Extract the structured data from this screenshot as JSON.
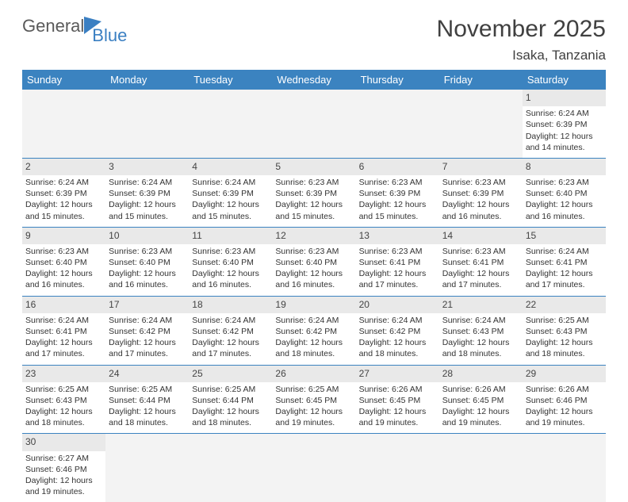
{
  "brand": {
    "text1": "General",
    "text2": "Blue"
  },
  "title": "November 2025",
  "location": "Isaka, Tanzania",
  "daynames": [
    "Sunday",
    "Monday",
    "Tuesday",
    "Wednesday",
    "Thursday",
    "Friday",
    "Saturday"
  ],
  "colors": {
    "header_bg": "#3b83c0",
    "header_text": "#ffffff",
    "rule": "#3b83c0"
  },
  "startOffset": 6,
  "days": [
    {
      "n": 1,
      "sr": "6:24 AM",
      "ss": "6:39 PM",
      "dl": "12 hours and 14 minutes."
    },
    {
      "n": 2,
      "sr": "6:24 AM",
      "ss": "6:39 PM",
      "dl": "12 hours and 15 minutes."
    },
    {
      "n": 3,
      "sr": "6:24 AM",
      "ss": "6:39 PM",
      "dl": "12 hours and 15 minutes."
    },
    {
      "n": 4,
      "sr": "6:24 AM",
      "ss": "6:39 PM",
      "dl": "12 hours and 15 minutes."
    },
    {
      "n": 5,
      "sr": "6:23 AM",
      "ss": "6:39 PM",
      "dl": "12 hours and 15 minutes."
    },
    {
      "n": 6,
      "sr": "6:23 AM",
      "ss": "6:39 PM",
      "dl": "12 hours and 15 minutes."
    },
    {
      "n": 7,
      "sr": "6:23 AM",
      "ss": "6:39 PM",
      "dl": "12 hours and 16 minutes."
    },
    {
      "n": 8,
      "sr": "6:23 AM",
      "ss": "6:40 PM",
      "dl": "12 hours and 16 minutes."
    },
    {
      "n": 9,
      "sr": "6:23 AM",
      "ss": "6:40 PM",
      "dl": "12 hours and 16 minutes."
    },
    {
      "n": 10,
      "sr": "6:23 AM",
      "ss": "6:40 PM",
      "dl": "12 hours and 16 minutes."
    },
    {
      "n": 11,
      "sr": "6:23 AM",
      "ss": "6:40 PM",
      "dl": "12 hours and 16 minutes."
    },
    {
      "n": 12,
      "sr": "6:23 AM",
      "ss": "6:40 PM",
      "dl": "12 hours and 16 minutes."
    },
    {
      "n": 13,
      "sr": "6:23 AM",
      "ss": "6:41 PM",
      "dl": "12 hours and 17 minutes."
    },
    {
      "n": 14,
      "sr": "6:23 AM",
      "ss": "6:41 PM",
      "dl": "12 hours and 17 minutes."
    },
    {
      "n": 15,
      "sr": "6:24 AM",
      "ss": "6:41 PM",
      "dl": "12 hours and 17 minutes."
    },
    {
      "n": 16,
      "sr": "6:24 AM",
      "ss": "6:41 PM",
      "dl": "12 hours and 17 minutes."
    },
    {
      "n": 17,
      "sr": "6:24 AM",
      "ss": "6:42 PM",
      "dl": "12 hours and 17 minutes."
    },
    {
      "n": 18,
      "sr": "6:24 AM",
      "ss": "6:42 PM",
      "dl": "12 hours and 17 minutes."
    },
    {
      "n": 19,
      "sr": "6:24 AM",
      "ss": "6:42 PM",
      "dl": "12 hours and 18 minutes."
    },
    {
      "n": 20,
      "sr": "6:24 AM",
      "ss": "6:42 PM",
      "dl": "12 hours and 18 minutes."
    },
    {
      "n": 21,
      "sr": "6:24 AM",
      "ss": "6:43 PM",
      "dl": "12 hours and 18 minutes."
    },
    {
      "n": 22,
      "sr": "6:25 AM",
      "ss": "6:43 PM",
      "dl": "12 hours and 18 minutes."
    },
    {
      "n": 23,
      "sr": "6:25 AM",
      "ss": "6:43 PM",
      "dl": "12 hours and 18 minutes."
    },
    {
      "n": 24,
      "sr": "6:25 AM",
      "ss": "6:44 PM",
      "dl": "12 hours and 18 minutes."
    },
    {
      "n": 25,
      "sr": "6:25 AM",
      "ss": "6:44 PM",
      "dl": "12 hours and 18 minutes."
    },
    {
      "n": 26,
      "sr": "6:25 AM",
      "ss": "6:45 PM",
      "dl": "12 hours and 19 minutes."
    },
    {
      "n": 27,
      "sr": "6:26 AM",
      "ss": "6:45 PM",
      "dl": "12 hours and 19 minutes."
    },
    {
      "n": 28,
      "sr": "6:26 AM",
      "ss": "6:45 PM",
      "dl": "12 hours and 19 minutes."
    },
    {
      "n": 29,
      "sr": "6:26 AM",
      "ss": "6:46 PM",
      "dl": "12 hours and 19 minutes."
    },
    {
      "n": 30,
      "sr": "6:27 AM",
      "ss": "6:46 PM",
      "dl": "12 hours and 19 minutes."
    }
  ],
  "labels": {
    "sunrise": "Sunrise:",
    "sunset": "Sunset:",
    "daylight": "Daylight:"
  }
}
